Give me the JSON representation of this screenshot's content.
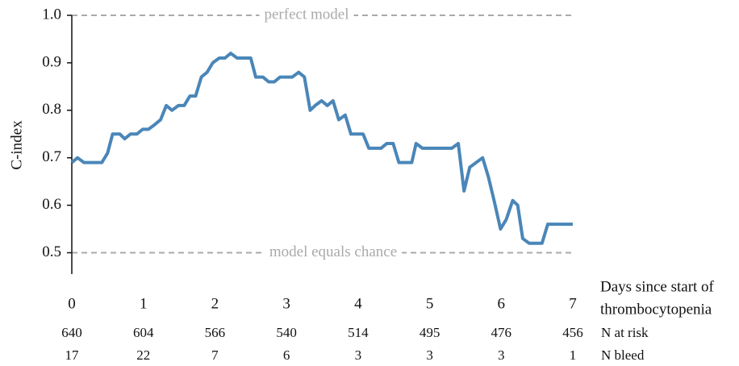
{
  "chart_data": {
    "type": "line",
    "y_label": "C-index",
    "x_label_lines": [
      "Days since start of",
      "thrombocytopenia"
    ],
    "xlim": [
      0,
      7
    ],
    "xticks": [
      0,
      1,
      2,
      3,
      4,
      5,
      6,
      7
    ],
    "ylim": [
      0.455,
      1.0
    ],
    "yticks": [
      0.5,
      0.6,
      0.7,
      0.8,
      0.9,
      {
        "value": 1.0,
        "label": "1.0"
      }
    ],
    "reference_lines": [
      {
        "value": 1.0,
        "label": "perfect model"
      },
      {
        "value": 0.5,
        "label": "model equals chance"
      }
    ],
    "series": [
      {
        "name": "C-index",
        "color": "#4a86b8",
        "x": [
          0,
          0.08,
          0.17,
          0.42,
          0.5,
          0.57,
          0.67,
          0.74,
          0.82,
          0.91,
          0.99,
          1.07,
          1.16,
          1.24,
          1.32,
          1.4,
          1.49,
          1.57,
          1.65,
          1.73,
          1.81,
          1.89,
          1.97,
          2.06,
          2.14,
          2.22,
          2.31,
          2.5,
          2.57,
          2.67,
          2.75,
          2.83,
          2.91,
          3.08,
          3.17,
          3.25,
          3.33,
          3.4,
          3.49,
          3.57,
          3.65,
          3.73,
          3.82,
          3.9,
          4.07,
          4.15,
          4.32,
          4.4,
          4.49,
          4.57,
          4.75,
          4.81,
          4.9,
          5.31,
          5.4,
          5.48,
          5.56,
          5.74,
          5.82,
          5.9,
          5.99,
          6.07,
          6.16,
          6.23,
          6.3,
          6.39,
          6.57,
          6.65,
          7
        ],
        "values": [
          0.69,
          0.7,
          0.69,
          0.69,
          0.71,
          0.75,
          0.75,
          0.74,
          0.75,
          0.75,
          0.76,
          0.76,
          0.77,
          0.78,
          0.81,
          0.8,
          0.81,
          0.81,
          0.83,
          0.83,
          0.87,
          0.88,
          0.9,
          0.91,
          0.91,
          0.92,
          0.91,
          0.91,
          0.87,
          0.87,
          0.86,
          0.86,
          0.87,
          0.87,
          0.88,
          0.87,
          0.8,
          0.81,
          0.82,
          0.81,
          0.82,
          0.78,
          0.79,
          0.75,
          0.75,
          0.72,
          0.72,
          0.73,
          0.73,
          0.69,
          0.69,
          0.73,
          0.72,
          0.72,
          0.73,
          0.63,
          0.68,
          0.7,
          0.66,
          0.61,
          0.55,
          0.57,
          0.61,
          0.6,
          0.53,
          0.52,
          0.52,
          0.56,
          0.56
        ]
      }
    ],
    "risk_table": [
      {
        "name": "N at risk",
        "values": [
          640,
          604,
          566,
          540,
          514,
          495,
          476,
          456
        ]
      },
      {
        "name": "N bleed",
        "values": [
          17,
          22,
          7,
          6,
          3,
          3,
          3,
          1
        ]
      }
    ]
  }
}
